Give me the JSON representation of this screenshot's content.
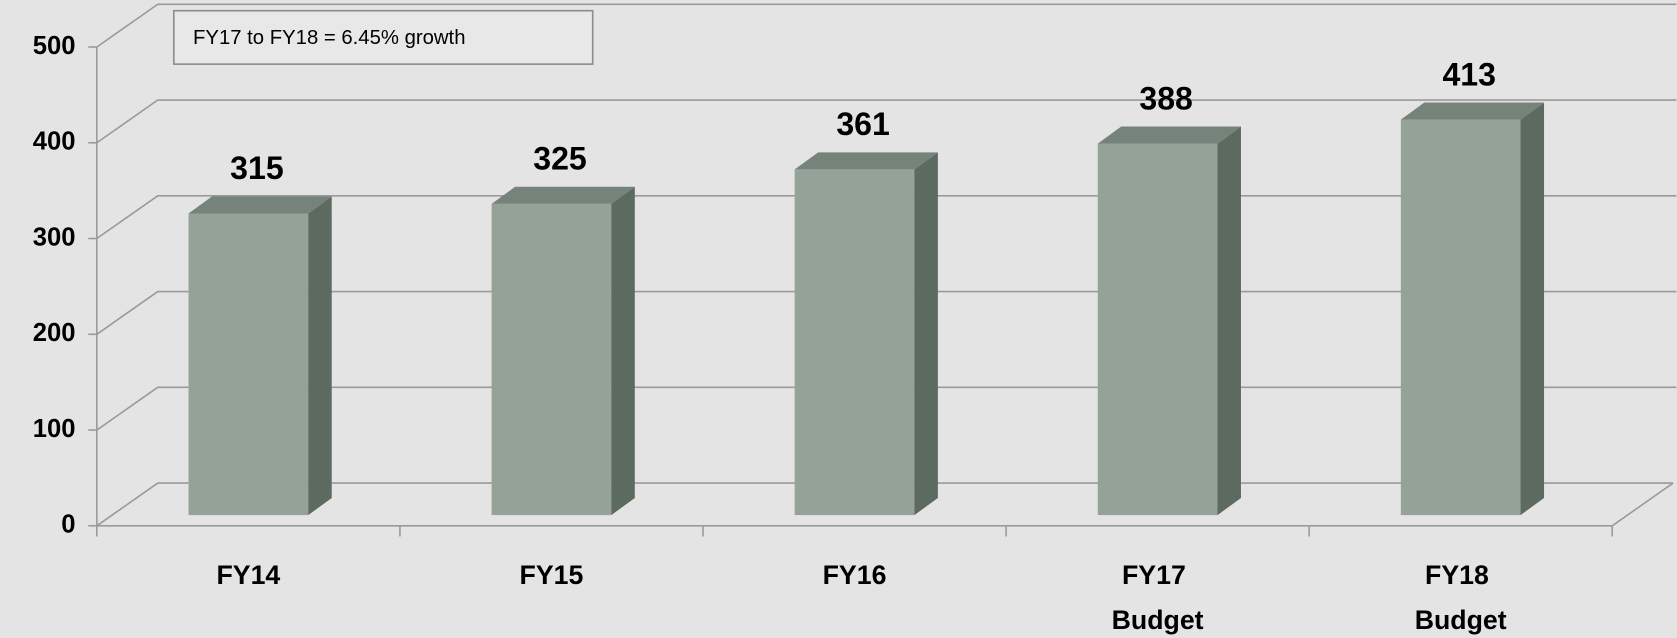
{
  "chart_data": {
    "type": "bar3d",
    "annotation": "FY17 to FY18 = 6.45% growth",
    "categories": [
      "FY14",
      "FY15",
      "FY16",
      "FY17 Budget",
      "FY18 Budget"
    ],
    "values": [
      315,
      325,
      361,
      388,
      413
    ],
    "color": "#95a298",
    "side_color": "#5d6a60",
    "top_color": "#76837a",
    "ylim": [
      0,
      500
    ],
    "yticks": [
      0,
      100,
      200,
      300,
      400,
      500
    ],
    "grid": true
  }
}
